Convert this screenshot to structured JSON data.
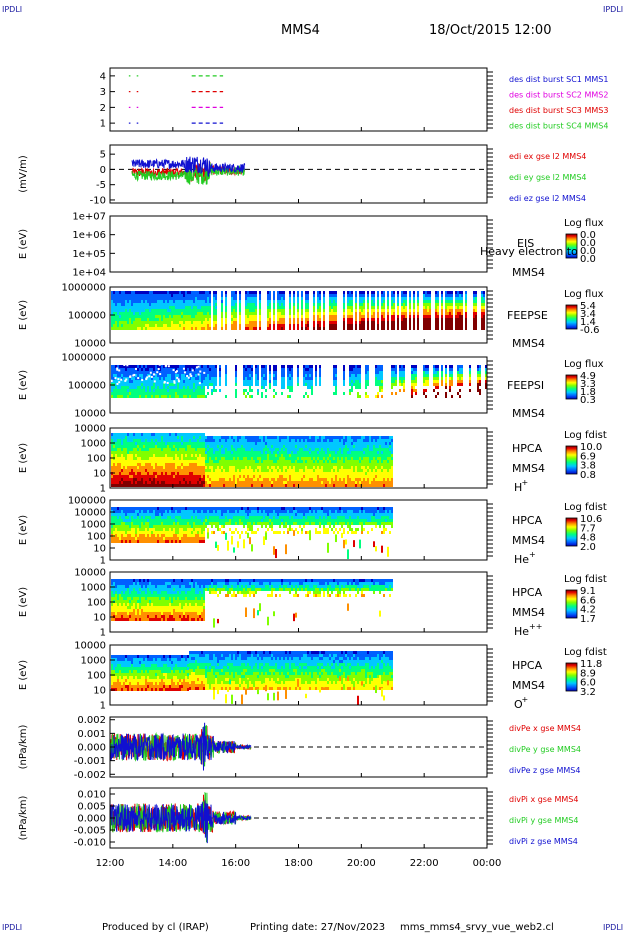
{
  "header": {
    "corner_tl": "IPDLI",
    "corner_tr": "IPDLI",
    "corner_bl": "IPDLI",
    "corner_br": "IPDLI",
    "spacecraft": "MMS4",
    "datetime": "18/Oct/2015 12:00"
  },
  "footer": {
    "produced_by": "Produced by cl (IRAP)",
    "printing_date": "Printing date: 27/Nov/2023",
    "file_name": "mms_mms4_srvy_vue_web2.cl"
  },
  "colors": {
    "red": "#e00000",
    "green": "#22cc22",
    "blue": "#1010d0",
    "magenta": "#e000e0",
    "colorbar": [
      "#0000c0",
      "#0060ff",
      "#00c8ff",
      "#00ff80",
      "#80ff00",
      "#ffff00",
      "#ff9000",
      "#e00000",
      "#800000"
    ]
  },
  "x_axis": {
    "ticks": [
      "12:00",
      "14:00",
      "16:00",
      "18:00",
      "20:00",
      "22:00",
      "00:00"
    ],
    "range_hours": [
      12,
      24
    ]
  },
  "chart_data": [
    {
      "type": "line",
      "id": "burst",
      "ylabel": "",
      "yticks": [
        "4",
        "3",
        "2",
        "1"
      ],
      "ylim": [
        0.5,
        4.5
      ],
      "legend": [
        {
          "label": "des dist burst SC1 MMS1",
          "color": "#1010d0"
        },
        {
          "label": "des dist burst SC2 MMS2",
          "color": "#e000e0"
        },
        {
          "label": "des dist burst SC3 MMS3",
          "color": "#e00000"
        },
        {
          "label": "des dist burst SC4 MMS4",
          "color": "#22cc22"
        }
      ],
      "series": [
        {
          "name": "des dist burst SC4 MMS4",
          "level": 4,
          "color": "#22cc22",
          "intervals": [
            [
              12.6,
              12.65
            ],
            [
              12.85,
              12.9
            ],
            [
              14.6,
              15.6
            ]
          ]
        },
        {
          "name": "des dist burst SC3 MMS3",
          "level": 3,
          "color": "#e00000",
          "intervals": [
            [
              12.6,
              12.65
            ],
            [
              12.85,
              12.9
            ],
            [
              14.6,
              15.6
            ]
          ]
        },
        {
          "name": "des dist burst SC2 MMS2",
          "level": 2,
          "color": "#e000e0",
          "intervals": [
            [
              12.6,
              12.65
            ],
            [
              12.85,
              12.9
            ],
            [
              14.6,
              15.6
            ]
          ]
        },
        {
          "name": "des dist burst SC1 MMS1",
          "level": 1,
          "color": "#1010d0",
          "intervals": [
            [
              12.6,
              12.65
            ],
            [
              12.85,
              12.9
            ],
            [
              14.6,
              15.6
            ]
          ]
        }
      ]
    },
    {
      "type": "line",
      "id": "edi",
      "ylabel": "(mV/m)",
      "yticks": [
        "5",
        "0",
        "-5",
        "-10"
      ],
      "ytick_values": [
        5,
        0,
        -5,
        -10
      ],
      "ylim": [
        -11,
        8
      ],
      "data_range_hours": [
        12.7,
        16.3
      ],
      "legend": [
        {
          "label": "edi ex gse l2 MMS4",
          "color": "#e00000"
        },
        {
          "label": "edi ey gse l2 MMS4",
          "color": "#22cc22"
        },
        {
          "label": "edi ez gse l2 MMS4",
          "color": "#1010d0"
        }
      ]
    },
    {
      "type": "heatmap",
      "id": "eis",
      "ylabel": "E (eV)",
      "yticks": [
        "1e+07",
        "1e+06",
        "1e+05",
        "1e+04"
      ],
      "instrument": "EIS",
      "overlay_text": "Heavy electron to",
      "spacecraft": "MMS4",
      "cb_title": "Log flux",
      "cb_values": [
        "0.0",
        "0.0",
        "0.0",
        "0.0"
      ],
      "data_range_hours": [
        12,
        12
      ]
    },
    {
      "type": "heatmap",
      "id": "feepse",
      "ylabel": "E (eV)",
      "yticks": [
        "1000000",
        "100000",
        "10000"
      ],
      "instrument": "FEEPSE",
      "spacecraft": "MMS4",
      "cb_title": "Log flux",
      "cb_values": [
        "5.4",
        "3.4",
        "1.4",
        "-0.6"
      ],
      "data_range_hours": [
        12,
        24
      ]
    },
    {
      "type": "heatmap",
      "id": "feepsi",
      "ylabel": "E (eV)",
      "yticks": [
        "1000000",
        "100000",
        "10000"
      ],
      "instrument": "FEEPSI",
      "spacecraft": "MMS4",
      "cb_title": "Log flux",
      "cb_values": [
        "4.9",
        "3.3",
        "1.8",
        "0.3"
      ],
      "data_range_hours": [
        12,
        24
      ]
    },
    {
      "type": "heatmap",
      "id": "hpca-h",
      "ylabel": "E (eV)",
      "yticks": [
        "10000",
        "1000",
        "100",
        "10",
        "1"
      ],
      "instrument": "HPCA",
      "spacecraft": "MMS4",
      "species": "H",
      "species_sup": "+",
      "cb_title": "Log fdist",
      "cb_values": [
        "10.0",
        "6.9",
        "3.8",
        "0.8"
      ],
      "data_range_hours": [
        12,
        21
      ]
    },
    {
      "type": "heatmap",
      "id": "hpca-he",
      "ylabel": "E (eV)",
      "yticks": [
        "100000",
        "10000",
        "1000",
        "100",
        "10",
        "1"
      ],
      "instrument": "HPCA",
      "spacecraft": "MMS4",
      "species": "He",
      "species_sup": "+",
      "cb_title": "Log fdist",
      "cb_values": [
        "10.6",
        "7.7",
        "4.8",
        "2.0"
      ],
      "data_range_hours": [
        12,
        21
      ]
    },
    {
      "type": "heatmap",
      "id": "hpca-hepp",
      "ylabel": "E (eV)",
      "yticks": [
        "10000",
        "1000",
        "100",
        "10",
        "1"
      ],
      "instrument": "HPCA",
      "spacecraft": "MMS4",
      "species": "He",
      "species_sup": "++",
      "cb_title": "Log fdist",
      "cb_values": [
        "9.1",
        "6.6",
        "4.2",
        "1.7"
      ],
      "data_range_hours": [
        12,
        21
      ]
    },
    {
      "type": "heatmap",
      "id": "hpca-o",
      "ylabel": "E (eV)",
      "yticks": [
        "10000",
        "1000",
        "100",
        "10",
        "1"
      ],
      "instrument": "HPCA",
      "spacecraft": "MMS4",
      "species": "O",
      "species_sup": "+",
      "cb_title": "Log fdist",
      "cb_values": [
        "11.8",
        "8.9",
        "6.0",
        "3.2"
      ],
      "data_range_hours": [
        12,
        21
      ]
    },
    {
      "type": "line",
      "id": "divpe",
      "ylabel": "(nPa/km)",
      "yticks": [
        "0.002",
        "0.001",
        "0.000",
        "-0.001",
        "-0.002"
      ],
      "ytick_values": [
        0.002,
        0.001,
        0,
        -0.001,
        -0.002
      ],
      "ylim": [
        -0.0022,
        0.0022
      ],
      "data_range_hours": [
        12,
        16.5
      ],
      "legend": [
        {
          "label": "divPe x gse MMS4",
          "color": "#e00000"
        },
        {
          "label": "divPe y gse MMS4",
          "color": "#22cc22"
        },
        {
          "label": "divPe z gse MMS4",
          "color": "#1010d0"
        }
      ]
    },
    {
      "type": "line",
      "id": "divpi",
      "ylabel": "(nPa/km)",
      "yticks": [
        "0.010",
        "0.005",
        "0.000",
        "-0.005",
        "-0.010"
      ],
      "ytick_values": [
        0.01,
        0.005,
        0,
        -0.005,
        -0.01
      ],
      "ylim": [
        -0.0125,
        0.0125
      ],
      "data_range_hours": [
        12,
        16.5
      ],
      "legend": [
        {
          "label": "divPi x gse MMS4",
          "color": "#e00000"
        },
        {
          "label": "divPi y gse MMS4",
          "color": "#22cc22"
        },
        {
          "label": "divPi z gse MMS4",
          "color": "#1010d0"
        }
      ]
    }
  ]
}
